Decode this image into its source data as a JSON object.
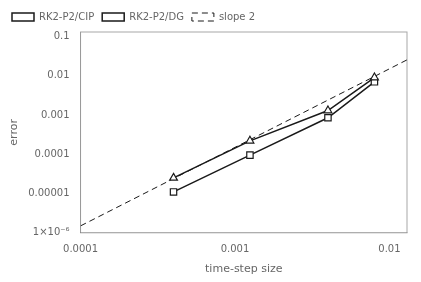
{
  "chart_data": {
    "type": "line",
    "xlabel": "time-step size",
    "ylabel": "error",
    "log": true,
    "xlim": [
      0.0001,
      0.013
    ],
    "ylim": [
      1e-06,
      0.13
    ],
    "xticks": [
      0.0001,
      0.001,
      0.01
    ],
    "yticks": [
      {
        "value": 1e-06,
        "label": "1×10⁻⁶"
      },
      1e-05,
      0.0001,
      0.001,
      0.01,
      0.1
    ],
    "grid": false,
    "legend": "upper left",
    "series": [
      {
        "name": "RK2-P2/CIP",
        "color": "#1a1a1a",
        "marker": "triangle",
        "line_style": "solid",
        "x": [
          0.0004,
          0.00125,
          0.004,
          0.008
        ],
        "values": [
          2.5e-05,
          0.00022,
          0.0013,
          0.009
        ]
      },
      {
        "name": "RK2-P2/DG",
        "color": "#1a1a1a",
        "marker": "square",
        "line_style": "solid",
        "x": [
          0.0004,
          0.00125,
          0.004,
          0.008
        ],
        "values": [
          1.1e-05,
          9.5e-05,
          0.00085,
          0.007
        ]
      },
      {
        "name": "slope 2",
        "color": "#1a1a1a",
        "marker": "none",
        "line_style": "dashed",
        "x": [
          0.0001,
          0.013
        ],
        "values": [
          1.5e-06,
          0.02535
        ]
      }
    ]
  }
}
